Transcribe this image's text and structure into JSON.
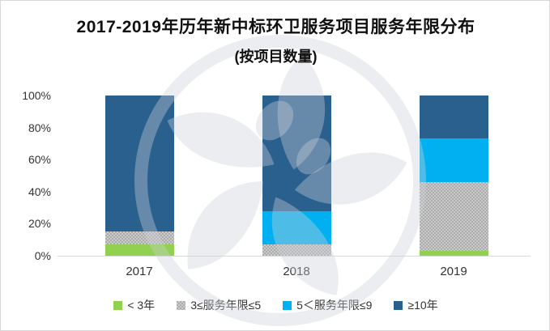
{
  "title": {
    "line1": "2017-2019年历年新中标环卫服务项目服务年限分布",
    "line2": "(按项目数量)"
  },
  "chart_data": {
    "type": "bar",
    "subtype": "stacked-100-percent",
    "title": "2017-2019年历年新中标环卫服务项目服务年限分布",
    "subtitle": "(按项目数量)",
    "categories": [
      "2017",
      "2018",
      "2019"
    ],
    "series": [
      {
        "name": "< 3年",
        "color": "#92D050",
        "values": [
          7,
          0,
          3
        ]
      },
      {
        "name": "3≤服务年限≤5",
        "color": "#ABABAB",
        "values": [
          8,
          7,
          43
        ]
      },
      {
        "name": "5＜服务年限≤9",
        "color": "#00B0F0",
        "values": [
          0,
          21,
          27
        ]
      },
      {
        "name": "≥10年",
        "color": "#2A608E",
        "values": [
          85,
          72,
          27
        ]
      }
    ],
    "xlabel": "",
    "ylabel": "",
    "ylim": [
      0,
      100
    ],
    "yticks": [
      "0%",
      "20%",
      "40%",
      "60%",
      "80%",
      "100%"
    ],
    "ytick_values": [
      0,
      20,
      40,
      60,
      80,
      100
    ],
    "grid": false,
    "legend_position": "bottom"
  },
  "legend": {
    "items": [
      {
        "label": "< 3年"
      },
      {
        "label": "3≤服务年限≤5"
      },
      {
        "label": "5＜服务年限≤9"
      },
      {
        "label": "≥10年"
      }
    ]
  },
  "colors": {
    "bar_green": "#92D050",
    "bar_gray": "#ABABAB",
    "bar_light_blue": "#00B0F0",
    "bar_dark_blue": "#2A608E",
    "axis_line": "#D9D9D9",
    "text": "#333333",
    "title_text": "#111111",
    "frame_border": "#D8D8D8",
    "watermark": "#E9ECEF"
  }
}
